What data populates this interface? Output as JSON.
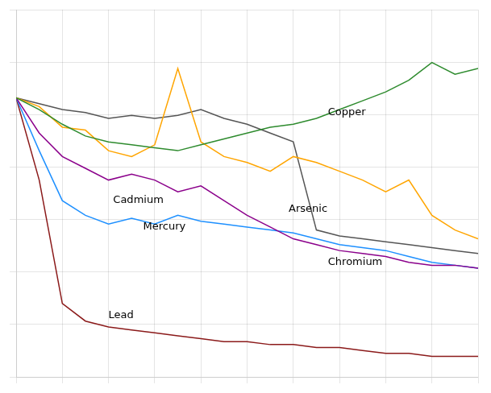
{
  "chart_data": {
    "type": "line",
    "x": [
      1990,
      1991,
      1992,
      1993,
      1994,
      1995,
      1996,
      1997,
      1998,
      1999,
      2000,
      2001,
      2002,
      2003,
      2004,
      2005,
      2006,
      2007,
      2008,
      2009,
      2010
    ],
    "series": [
      {
        "name": "Copper",
        "color": "#2e8b2e",
        "values": [
          1.0,
          0.96,
          0.91,
          0.87,
          0.85,
          0.84,
          0.83,
          0.82,
          0.84,
          0.86,
          0.88,
          0.9,
          0.91,
          0.93,
          0.96,
          0.99,
          1.02,
          1.06,
          1.12,
          1.08,
          1.1
        ]
      },
      {
        "name": "Arsenic",
        "color": "#ffa500",
        "values": [
          1.0,
          0.97,
          0.9,
          0.89,
          0.82,
          0.8,
          0.84,
          1.1,
          0.85,
          0.8,
          0.78,
          0.75,
          0.8,
          0.78,
          0.75,
          0.72,
          0.68,
          0.72,
          0.6,
          0.55,
          0.52
        ]
      },
      {
        "name": "Chromium",
        "color": "#555555",
        "values": [
          1.0,
          0.98,
          0.96,
          0.95,
          0.93,
          0.94,
          0.93,
          0.94,
          0.96,
          0.93,
          0.91,
          0.88,
          0.85,
          0.55,
          0.53,
          0.52,
          0.51,
          0.5,
          0.49,
          0.48,
          0.47
        ]
      },
      {
        "name": "Cadmium",
        "color": "#8b008b",
        "values": [
          1.0,
          0.88,
          0.8,
          0.76,
          0.72,
          0.74,
          0.72,
          0.68,
          0.7,
          0.65,
          0.6,
          0.56,
          0.52,
          0.5,
          0.48,
          0.47,
          0.46,
          0.44,
          0.43,
          0.43,
          0.42
        ]
      },
      {
        "name": "Mercury",
        "color": "#1e90ff",
        "values": [
          1.0,
          0.82,
          0.65,
          0.6,
          0.57,
          0.59,
          0.57,
          0.6,
          0.58,
          0.57,
          0.56,
          0.55,
          0.54,
          0.52,
          0.5,
          0.49,
          0.48,
          0.46,
          0.44,
          0.43,
          0.42
        ]
      },
      {
        "name": "Lead",
        "color": "#8b1a1a",
        "values": [
          1.0,
          0.72,
          0.3,
          0.24,
          0.22,
          0.21,
          0.2,
          0.19,
          0.18,
          0.17,
          0.17,
          0.16,
          0.16,
          0.15,
          0.15,
          0.14,
          0.13,
          0.13,
          0.12,
          0.12,
          0.12
        ]
      }
    ],
    "annotations": [
      {
        "text": "Copper",
        "x": 2003.5,
        "y": 0.95
      },
      {
        "text": "Arsenic",
        "x": 2001.8,
        "y": 0.62
      },
      {
        "text": "Chromium",
        "x": 2003.5,
        "y": 0.44
      },
      {
        "text": "Cadmium",
        "x": 1994.2,
        "y": 0.65
      },
      {
        "text": "Mercury",
        "x": 1995.5,
        "y": 0.56
      },
      {
        "text": "Lead",
        "x": 1994.0,
        "y": 0.26
      }
    ],
    "xlim": [
      1990,
      2010
    ],
    "xticks": [
      1990,
      1992,
      1994,
      1996,
      1998,
      2000,
      2002,
      2004,
      2006,
      2008,
      2010
    ],
    "ylim": [
      0.05,
      1.3
    ],
    "yticks": [
      0.05,
      0.22857142857142856,
      0.40714285714285714,
      0.5857142857142856,
      0.7642857142857142,
      0.9428571428571428,
      1.1214285714285712,
      1.3
    ],
    "grid": true,
    "tick_labels": false
  }
}
